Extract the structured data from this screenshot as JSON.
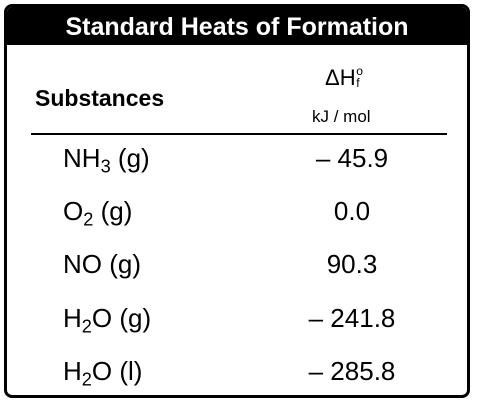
{
  "header": {
    "title": "Standard Heats of Formation"
  },
  "table": {
    "columns": [
      {
        "parts": [
          {
            "text": "Substances"
          }
        ]
      },
      {
        "parts": [
          {
            "text": "ΔH"
          },
          {
            "text": "o",
            "sup": true
          },
          {
            "text": "f",
            "sub": true
          }
        ],
        "unit": "kJ / mol"
      }
    ],
    "rows": [
      [
        {
          "parts": [
            {
              "text": "NH"
            },
            {
              "text": "3",
              "sub": true
            },
            {
              "text": " (g)"
            }
          ]
        },
        "– 45.9"
      ],
      [
        {
          "parts": [
            {
              "text": "O"
            },
            {
              "text": "2",
              "sub": true
            },
            {
              "text": " (g)"
            }
          ]
        },
        "0.0"
      ],
      [
        {
          "parts": [
            {
              "text": "NO (g)"
            }
          ]
        },
        "90.3"
      ],
      [
        {
          "parts": [
            {
              "text": "H"
            },
            {
              "text": "2",
              "sub": true
            },
            {
              "text": "O (g)"
            }
          ]
        },
        "– 241.8"
      ],
      [
        {
          "parts": [
            {
              "text": "H"
            },
            {
              "text": "2",
              "sub": true
            },
            {
              "text": "O (l)"
            }
          ]
        },
        "– 285.8"
      ]
    ]
  }
}
